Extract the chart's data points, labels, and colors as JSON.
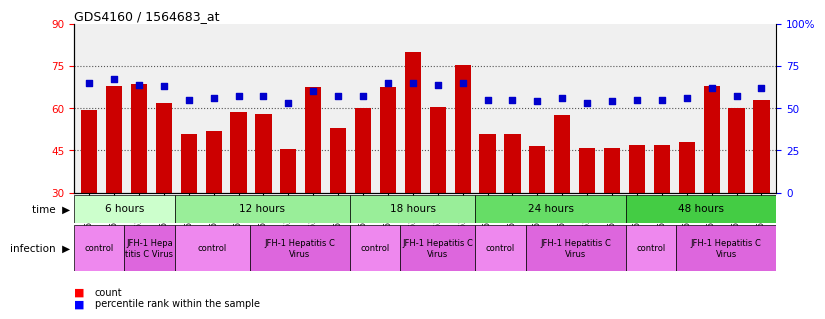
{
  "title": "GDS4160 / 1564683_at",
  "samples": [
    "GSM523814",
    "GSM523815",
    "GSM523800",
    "GSM523801",
    "GSM523816",
    "GSM523817",
    "GSM523818",
    "GSM523802",
    "GSM523803",
    "GSM523804",
    "GSM523819",
    "GSM523820",
    "GSM523821",
    "GSM523805",
    "GSM523806",
    "GSM523807",
    "GSM523822",
    "GSM523823",
    "GSM523824",
    "GSM523808",
    "GSM523809",
    "GSM523810",
    "GSM523825",
    "GSM523826",
    "GSM523827",
    "GSM523811",
    "GSM523812",
    "GSM523813"
  ],
  "count_values": [
    59.5,
    68.0,
    68.5,
    62.0,
    51.0,
    52.0,
    58.5,
    58.0,
    45.5,
    67.5,
    53.0,
    60.0,
    67.5,
    80.0,
    60.5,
    75.5,
    51.0,
    51.0,
    46.5,
    57.5,
    46.0,
    46.0,
    47.0,
    47.0,
    48.0,
    68.0,
    60.0,
    63.0
  ],
  "percentile_values": [
    65,
    67,
    64,
    63,
    55,
    56,
    57,
    57,
    53,
    60,
    57,
    57,
    65,
    65,
    64,
    65,
    55,
    55,
    54,
    56,
    53,
    54,
    55,
    55,
    56,
    62,
    57,
    62
  ],
  "bar_color": "#cc0000",
  "dot_color": "#0000cc",
  "ylim_left": [
    30,
    90
  ],
  "yticks_left": [
    30,
    45,
    60,
    75,
    90
  ],
  "ylim_right": [
    0,
    100
  ],
  "yticks_right": [
    0,
    25,
    50,
    75,
    100
  ],
  "ytick_labels_right": [
    "0",
    "25",
    "50",
    "75",
    "100%"
  ],
  "hline_values": [
    45,
    60,
    75
  ],
  "time_groups": [
    {
      "label": "6 hours",
      "start": 0,
      "end": 4,
      "color": "#ccffcc"
    },
    {
      "label": "12 hours",
      "start": 4,
      "end": 11,
      "color": "#99ee99"
    },
    {
      "label": "18 hours",
      "start": 11,
      "end": 16,
      "color": "#99ee99"
    },
    {
      "label": "24 hours",
      "start": 16,
      "end": 22,
      "color": "#66dd66"
    },
    {
      "label": "48 hours",
      "start": 22,
      "end": 28,
      "color": "#44cc44"
    }
  ],
  "infection_groups": [
    {
      "label": "control",
      "start": 0,
      "end": 2,
      "color": "#ee88ee"
    },
    {
      "label": "JFH-1 Hepa\ntitis C Virus",
      "start": 2,
      "end": 4,
      "color": "#dd66dd"
    },
    {
      "label": "control",
      "start": 4,
      "end": 7,
      "color": "#ee88ee"
    },
    {
      "label": "JFH-1 Hepatitis C\nVirus",
      "start": 7,
      "end": 11,
      "color": "#dd66dd"
    },
    {
      "label": "control",
      "start": 11,
      "end": 13,
      "color": "#ee88ee"
    },
    {
      "label": "JFH-1 Hepatitis C\nVirus",
      "start": 13,
      "end": 16,
      "color": "#dd66dd"
    },
    {
      "label": "control",
      "start": 16,
      "end": 18,
      "color": "#ee88ee"
    },
    {
      "label": "JFH-1 Hepatitis C\nVirus",
      "start": 18,
      "end": 22,
      "color": "#dd66dd"
    },
    {
      "label": "control",
      "start": 22,
      "end": 24,
      "color": "#ee88ee"
    },
    {
      "label": "JFH-1 Hepatitis C\nVirus",
      "start": 24,
      "end": 28,
      "color": "#dd66dd"
    }
  ],
  "bg_color": "#ffffff",
  "plot_bg_color": "#f0f0f0",
  "grid_color": "#333333"
}
